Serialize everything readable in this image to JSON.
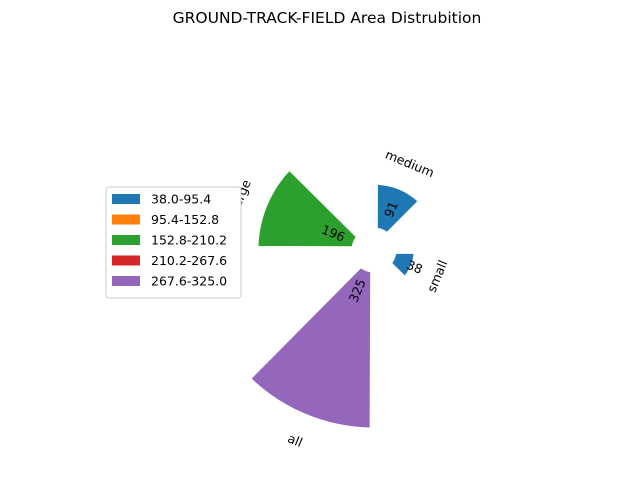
{
  "chart_data": {
    "type": "polar-bar",
    "title": "GROUND-TRACK-FIELD Area Distrubition",
    "categories": [
      "small",
      "medium",
      "large",
      "all"
    ],
    "values": [
      38,
      91,
      196,
      325
    ],
    "legend": {
      "placement": "left",
      "entries": [
        {
          "label": "38.0-95.4",
          "color": "#1f77b4"
        },
        {
          "label": "95.4-152.8",
          "color": "#ff7f0e"
        },
        {
          "label": "152.8-210.2",
          "color": "#2ca02c"
        },
        {
          "label": "210.2-267.6",
          "color": "#d62728"
        },
        {
          "label": "267.6-325.0",
          "color": "#9467bd"
        }
      ]
    },
    "bar_colors": [
      "#1f77b4",
      "#1f77b4",
      "#2ca02c",
      "#9467bd"
    ],
    "grid": false
  }
}
